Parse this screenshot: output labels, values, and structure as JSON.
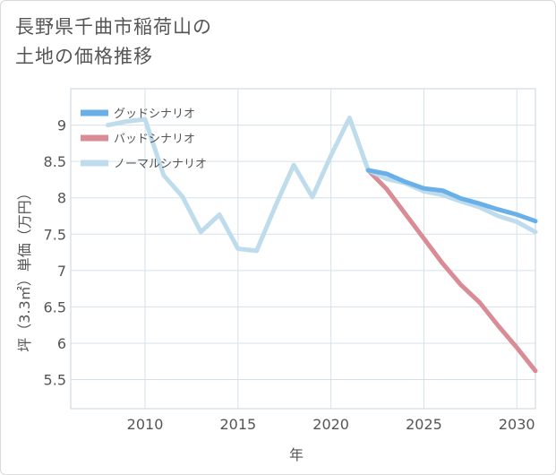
{
  "title_lines": [
    "長野県千曲市稲荷山の",
    "土地の価格推移"
  ],
  "chart_data": {
    "type": "line",
    "title": "長野県千曲市稲荷山の土地の価格推移",
    "xlabel": "年",
    "ylabel": "坪（3.3㎡）単価（万円）",
    "xlim": [
      2006,
      2031
    ],
    "ylim": [
      5.1,
      9.5
    ],
    "xticks": [
      2010,
      2015,
      2020,
      2025,
      2030
    ],
    "yticks": [
      5.5,
      6,
      6.5,
      7,
      7.5,
      8,
      8.5,
      9
    ],
    "grid": true,
    "legend_position": "top-left",
    "series": [
      {
        "name": "グッドシナリオ",
        "color": "#6ab0e8",
        "x": [
          2022,
          2023,
          2024,
          2025,
          2026,
          2027,
          2028,
          2029,
          2030,
          2031
        ],
        "y": [
          8.38,
          8.33,
          8.22,
          8.13,
          8.1,
          7.99,
          7.92,
          7.84,
          7.77,
          7.68
        ]
      },
      {
        "name": "バッドシナリオ",
        "color": "#d98c95",
        "x": [
          2022,
          2023,
          2024,
          2025,
          2026,
          2027,
          2028,
          2029,
          2030,
          2031
        ],
        "y": [
          8.38,
          8.12,
          7.78,
          7.44,
          7.1,
          6.8,
          6.56,
          6.24,
          5.94,
          5.62
        ]
      },
      {
        "name": "ノーマルシナリオ",
        "color": "#bfdcec",
        "x": [
          2008,
          2009,
          2010,
          2011,
          2012,
          2013,
          2014,
          2015,
          2016,
          2017,
          2018,
          2019,
          2020,
          2021,
          2022,
          2023,
          2024,
          2025,
          2026,
          2027,
          2028,
          2029,
          2030,
          2031
        ],
        "y": [
          9.0,
          9.05,
          9.08,
          8.31,
          8.02,
          7.53,
          7.77,
          7.3,
          7.27,
          7.88,
          8.45,
          8.01,
          8.58,
          9.1,
          8.38,
          8.26,
          8.2,
          8.09,
          8.04,
          7.95,
          7.87,
          7.75,
          7.67,
          7.53
        ]
      }
    ]
  }
}
